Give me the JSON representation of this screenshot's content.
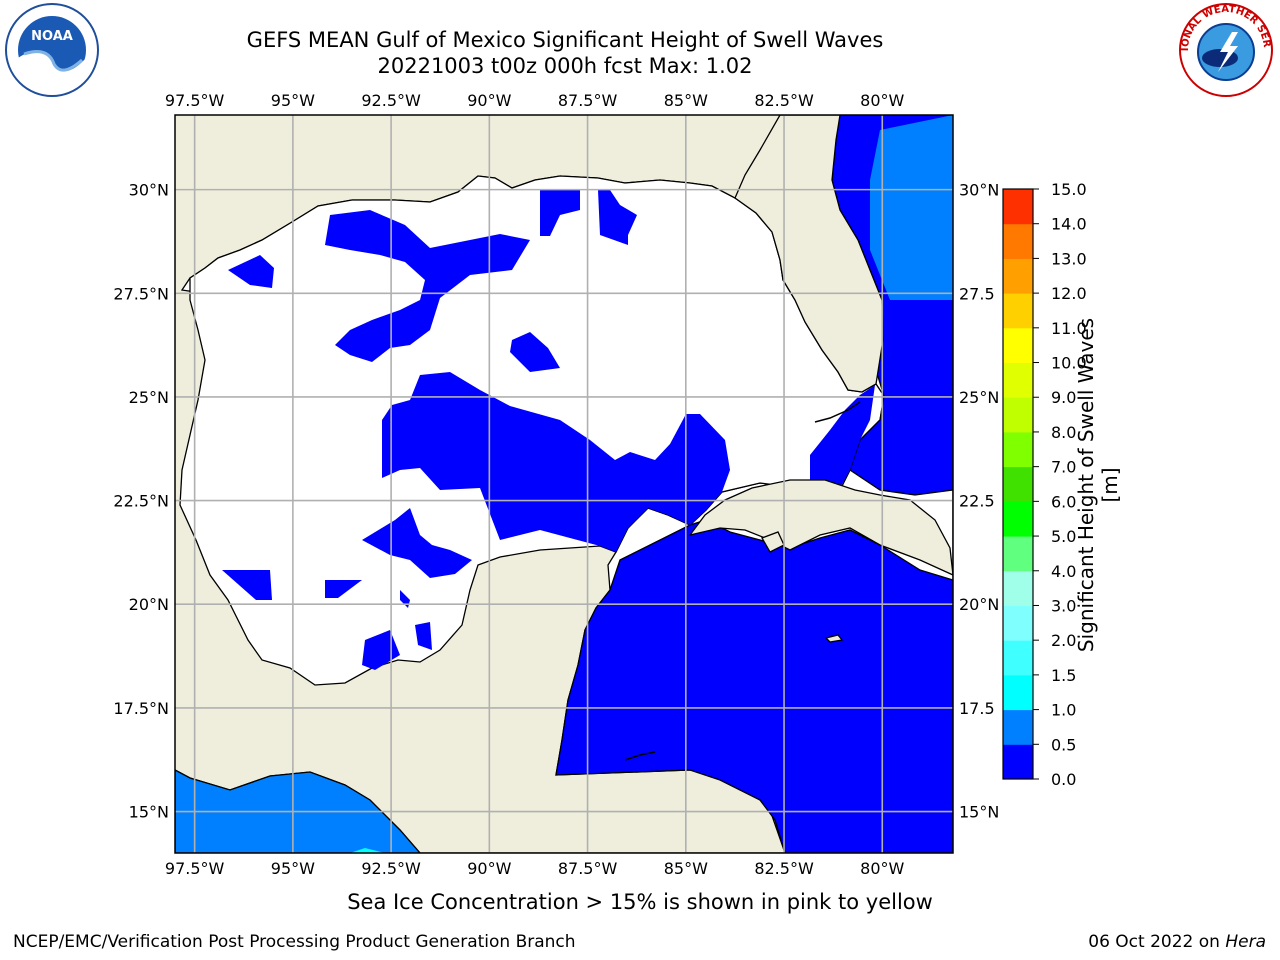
{
  "title_line1": "GEFS MEAN Gulf of Mexico Significant Height of Swell Waves",
  "title_line2": "20221003 t00z 000h fcst   Max: 1.02",
  "lon_ticks": [
    "97.5°W",
    "95°W",
    "92.5°W",
    "90°W",
    "87.5°W",
    "85°W",
    "82.5°W",
    "80°W"
  ],
  "lon_values": [
    -97.5,
    -95,
    -92.5,
    -90,
    -87.5,
    -85,
    -82.5,
    -80
  ],
  "lat_ticks": [
    "30°N",
    "27.5°N",
    "25°N",
    "22.5°N",
    "20°N",
    "17.5°N",
    "15°N"
  ],
  "lat_ticks_right": [
    "30°N",
    "27.5",
    "25°N",
    "22.5",
    "20°N",
    "17.5",
    "15°N"
  ],
  "lat_values": [
    30,
    27.5,
    25,
    22.5,
    20,
    17.5,
    15
  ],
  "extent": {
    "lon_min": -98,
    "lon_max": -78.2,
    "lat_min": 14,
    "lat_max": 31.8
  },
  "colorbar": {
    "label": "Significant Height of Swell Waves [m]",
    "ticks": [
      "0.0",
      "0.5",
      "1.0",
      "1.5",
      "2.0",
      "3.0",
      "4.0",
      "5.0",
      "6.0",
      "7.0",
      "8.0",
      "9.0",
      "10.0",
      "11.0",
      "12.0",
      "13.0",
      "14.0",
      "15.0"
    ],
    "colors": [
      "#0000ff",
      "#0080ff",
      "#00ffff",
      "#40ffff",
      "#80ffff",
      "#a0ffe8",
      "#60ff80",
      "#00ff00",
      "#40e000",
      "#80ff00",
      "#c0ff00",
      "#e0ff00",
      "#ffff00",
      "#ffd000",
      "#ffa000",
      "#ff7800",
      "#ff3000",
      "#ff0000"
    ]
  },
  "colors": {
    "land": "#efeedd",
    "ocean_low": "#0000ff",
    "ocean_mid": "#0080ff",
    "ocean_hi": "#00ffff",
    "grid": "#b0b0b0"
  },
  "note": "Sea Ice Concentration > 15% is shown in pink to yellow",
  "footer_left": "NCEP/EMC/Verification Post Processing Product Generation Branch",
  "footer_date": "06 Oct 2022 on ",
  "footer_host": "Hera",
  "logos": {
    "left": "NOAA",
    "right": "NATIONAL WEATHER SERVICE"
  }
}
